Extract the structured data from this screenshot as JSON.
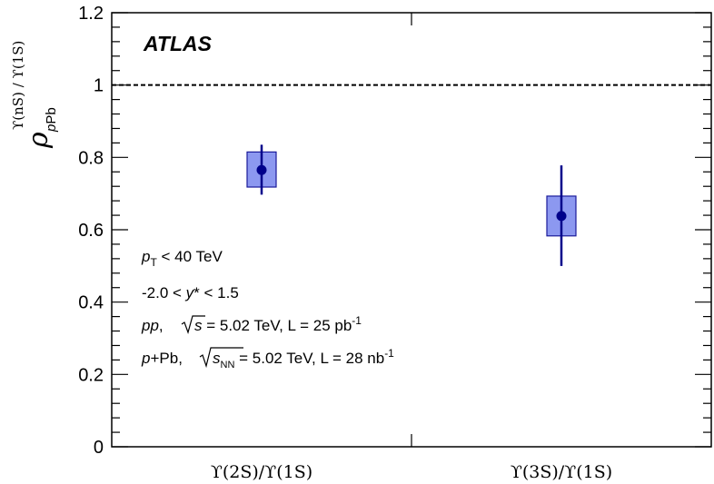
{
  "chart_data": {
    "type": "scatter",
    "categories": [
      "ϒ(2S)/ϒ(1S)",
      "ϒ(3S)/ϒ(1S)"
    ],
    "points": [
      {
        "value": 0.765,
        "stat_low": 0.697,
        "stat_high": 0.835,
        "syst_low": 0.718,
        "syst_high": 0.815
      },
      {
        "value": 0.638,
        "stat_low": 0.5,
        "stat_high": 0.778,
        "syst_low": 0.583,
        "syst_high": 0.693
      }
    ],
    "ylim": [
      0,
      1.2
    ],
    "yticks": [
      "0",
      "0.2",
      "0.4",
      "0.6",
      "0.8",
      "1",
      "1.2"
    ],
    "reference_line": {
      "y": 1,
      "style": "dashed"
    },
    "ylabel": {
      "main": "ρ",
      "superscript": "ϒ(nS) / ϒ(1S)",
      "subscript_prefix": "p",
      "subscript_suffix": "Pb"
    },
    "experiment_label": "ATLAS",
    "annotations": {
      "line1": {
        "p": "p",
        "T": "T",
        "rest": " < 40 TeV"
      },
      "line2": {
        "pre": "-2.0 < ",
        "y": "y",
        "post": "* < 1.5"
      },
      "line3": {
        "pp": "pp",
        "comma": ", ",
        "s": "s",
        "rest": " = 5.02 TeV, L = 25 pb",
        "exp": "-1"
      },
      "line4": {
        "p": "p",
        "plus": "+Pb, ",
        "s": "s",
        "NN": "NN",
        "rest": " = 5.02 TeV, L = 28 nb",
        "exp": "-1"
      }
    },
    "colors": {
      "marker": "#00008B",
      "box_fill": "#8C98F0",
      "box_stroke": "#1A1A9A",
      "axis": "#000000"
    },
    "grid": false
  }
}
